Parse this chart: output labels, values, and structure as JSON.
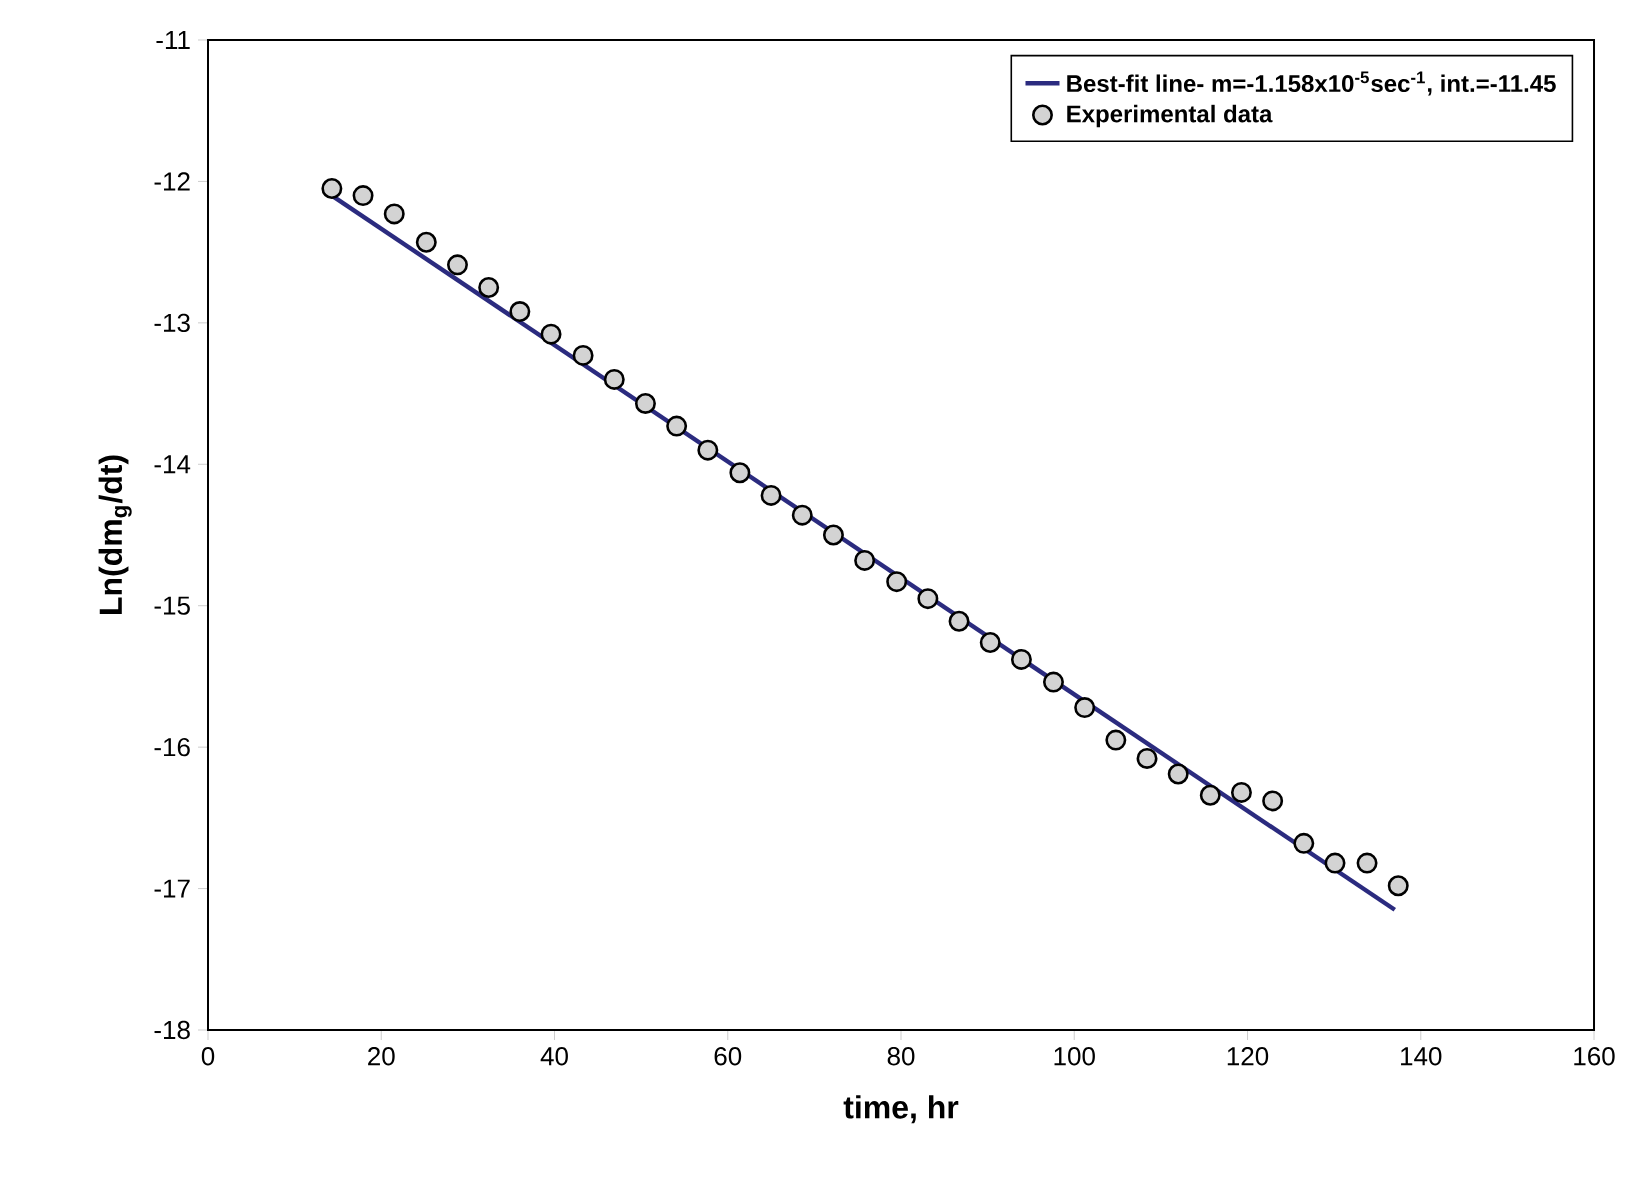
{
  "chart_data": {
    "type": "scatter",
    "xlabel": "time, hr",
    "ylabel": "Ln(dm$_{g}$/dt)",
    "xlim": [
      0,
      160
    ],
    "xticks": [
      0,
      20,
      40,
      60,
      80,
      100,
      120,
      140,
      160
    ],
    "ylim": [
      -18,
      -11
    ],
    "yticks": [
      -18,
      -17,
      -16,
      -15,
      -14,
      -13,
      -12,
      -11
    ],
    "legend": "top right",
    "grid": false,
    "series": [
      {
        "name": "Best-fit line- m=-1.158x10$^{-5}$sec$^{-1}$, int.=-11.45",
        "type": "line",
        "color": "#2b2b7f",
        "marker": "none",
        "line_style": "solid",
        "x": [
          14.3,
          137
        ],
        "values": [
          -12.1,
          -17.15
        ]
      },
      {
        "name": "Experimental data",
        "color": "#d3d3d3",
        "marker": "circle",
        "x": [
          14.3,
          17.9,
          21.5,
          25.2,
          28.8,
          32.4,
          36.0,
          39.6,
          43.3,
          46.9,
          50.5,
          54.1,
          57.7,
          61.4,
          65.0,
          68.6,
          72.2,
          75.8,
          79.5,
          83.1,
          86.7,
          90.3,
          93.9,
          97.6,
          101.2,
          104.8,
          108.4,
          112.0,
          115.7,
          119.3,
          122.9,
          126.5,
          130.1,
          133.8,
          137.4
        ],
        "values": [
          -12.05,
          -12.1,
          -12.23,
          -12.43,
          -12.59,
          -12.75,
          -12.92,
          -13.08,
          -13.23,
          -13.4,
          -13.57,
          -13.73,
          -13.9,
          -14.06,
          -14.22,
          -14.36,
          -14.5,
          -14.68,
          -14.83,
          -14.95,
          -15.11,
          -15.26,
          -15.38,
          -15.54,
          -15.72,
          -15.95,
          -16.08,
          -16.19,
          -16.34,
          -16.32,
          -16.38,
          -16.68,
          -16.82,
          -16.82,
          -16.98
        ]
      }
    ]
  }
}
